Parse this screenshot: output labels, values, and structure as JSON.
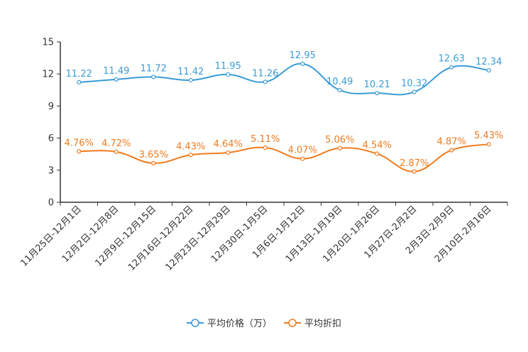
{
  "chart_data": {
    "type": "line",
    "title": "",
    "xlabel": "",
    "ylabel": "",
    "ylim": [
      0,
      15
    ],
    "yticks": [
      0,
      3,
      6,
      9,
      12,
      15
    ],
    "grid": false,
    "legend_position": "bottom-center",
    "categories": [
      "11月25日-12月1日",
      "12月2日-12月8日",
      "12月9日-12月15日",
      "12月16日-12月22日",
      "12月23日-12月29日",
      "12月30日-1月5日",
      "1月6日-1月12日",
      "1月13日-1月19日",
      "1月20日-1月26日",
      "1月27日-2月2日",
      "2月3日-2月9日",
      "2月10日-2月16日"
    ],
    "series": [
      {
        "name": "平均价格（万）",
        "color": "#3a9bd5",
        "values": [
          11.22,
          11.49,
          11.72,
          11.42,
          11.95,
          11.26,
          12.95,
          10.49,
          10.21,
          10.32,
          12.63,
          12.34
        ],
        "labels": [
          "11.22",
          "11.49",
          "11.72",
          "11.42",
          "11.95",
          "11.26",
          "12.95",
          "10.49",
          "10.21",
          "10.32",
          "12.63",
          "12.34"
        ]
      },
      {
        "name": "平均折扣",
        "color": "#f07b1f",
        "values": [
          4.76,
          4.72,
          3.65,
          4.43,
          4.64,
          5.11,
          4.07,
          5.06,
          4.54,
          2.87,
          4.87,
          5.43
        ],
        "labels": [
          "4.76%",
          "4.72%",
          "3.65%",
          "4.43%",
          "4.64%",
          "5.11%",
          "4.07%",
          "5.06%",
          "4.54%",
          "2.87%",
          "4.87%",
          "5.43%"
        ]
      }
    ]
  }
}
